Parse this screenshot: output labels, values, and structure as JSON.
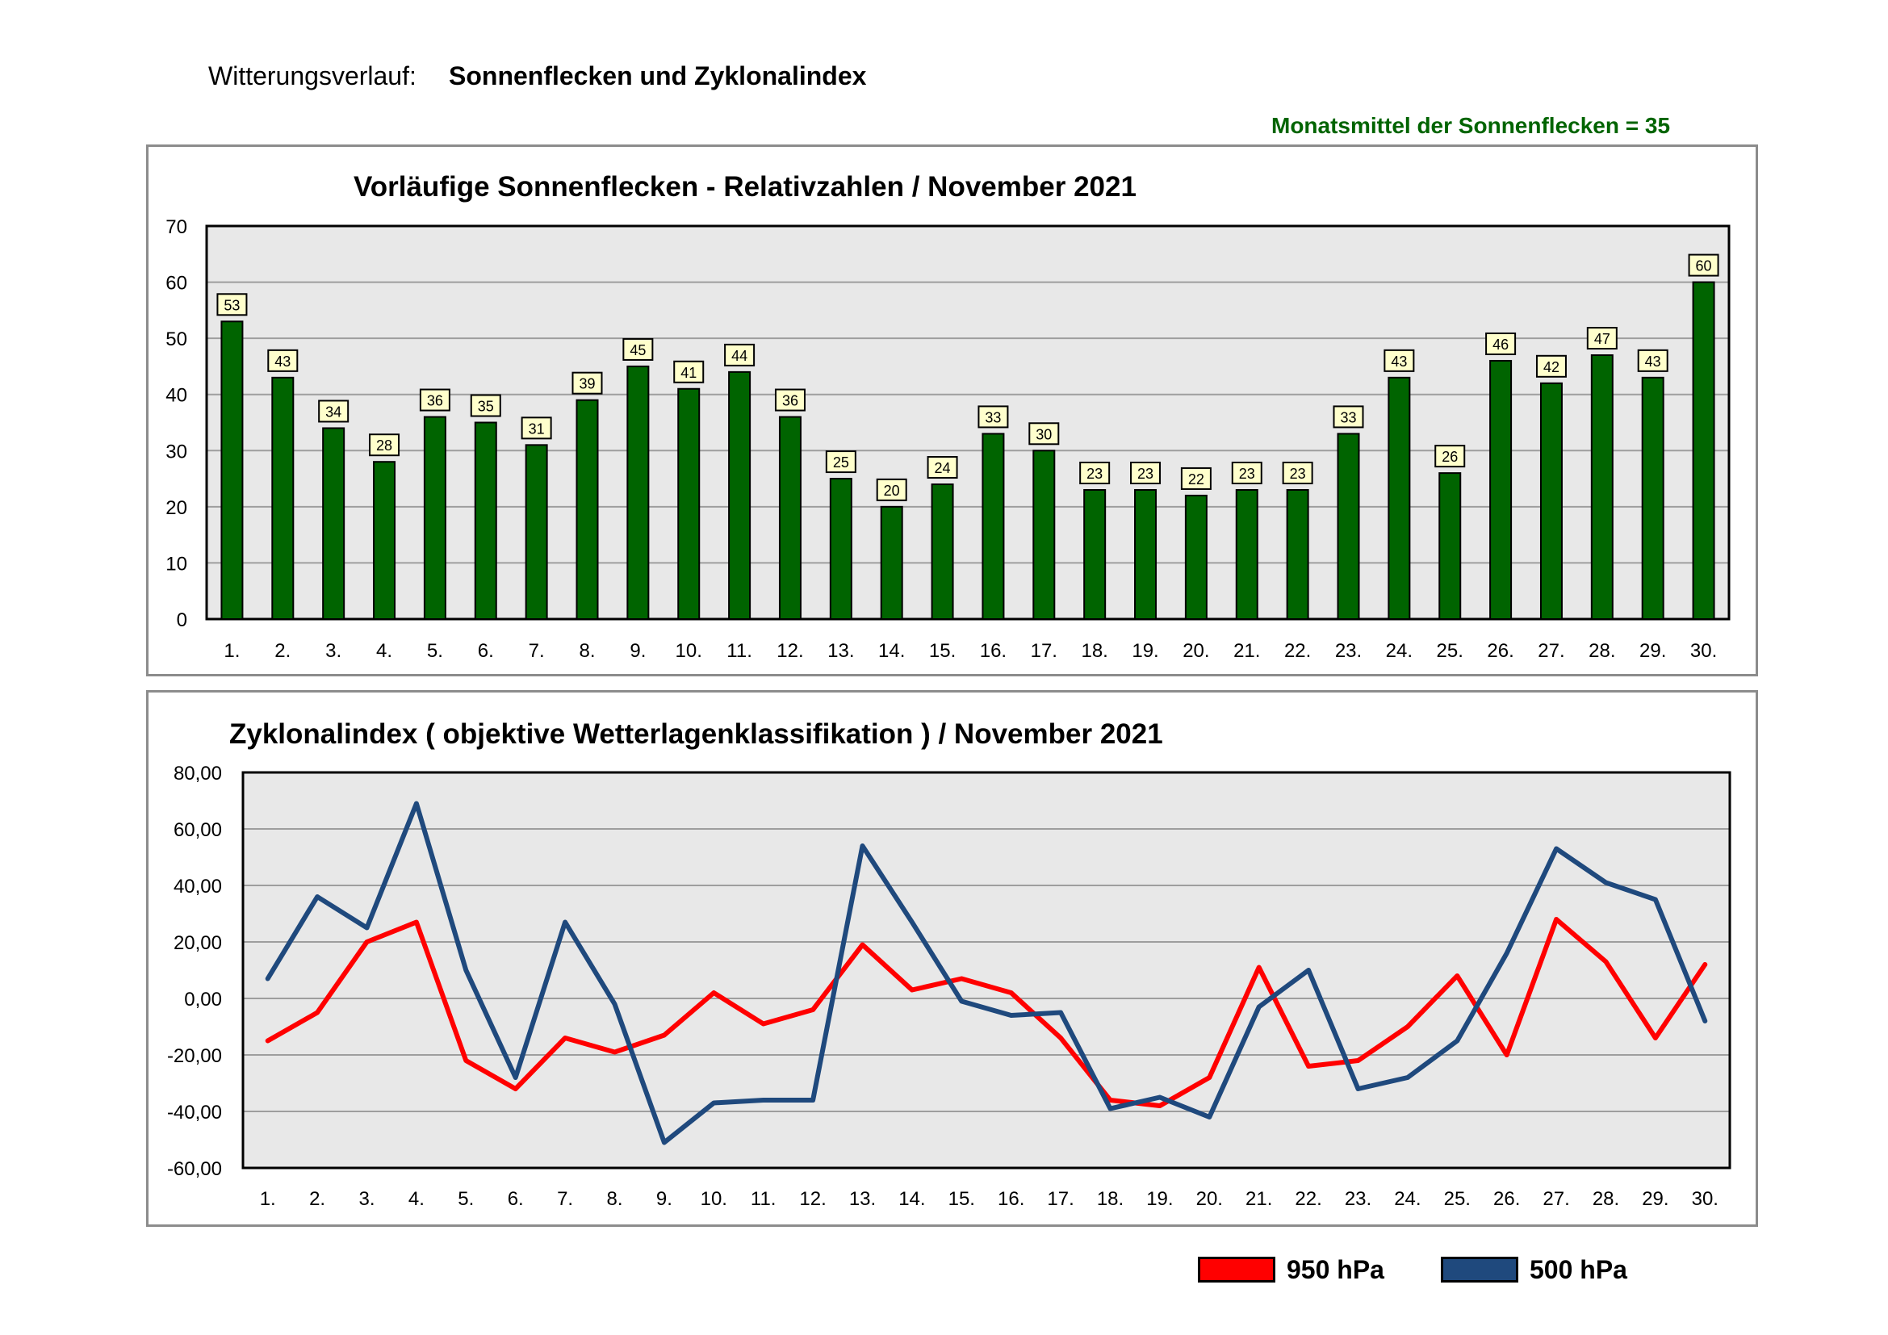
{
  "header": {
    "label": "Witterungsverlauf:",
    "title": "Sonnenflecken und Zyklonalindex",
    "monthly_mean": "Monatsmittel der Sonnenflecken = 35"
  },
  "colors": {
    "bar": "#006400",
    "plot_bg": "#e8e8e8",
    "grid": "#9e9e9e",
    "label_box": "#ffffcc",
    "series_950": "#ff0000",
    "series_500": "#1f497d"
  },
  "legend": {
    "item_950": "950 hPa",
    "item_500": "500 hPa"
  },
  "chart_data": [
    {
      "type": "bar",
      "title": "Vorläufige Sonnenflecken - Relativzahlen  /   November 2021",
      "categories": [
        "1.",
        "2.",
        "3.",
        "4.",
        "5.",
        "6.",
        "7.",
        "8.",
        "9.",
        "10.",
        "11.",
        "12.",
        "13.",
        "14.",
        "15.",
        "16.",
        "17.",
        "18.",
        "19.",
        "20.",
        "21.",
        "22.",
        "23.",
        "24.",
        "25.",
        "26.",
        "27.",
        "28.",
        "29.",
        "30."
      ],
      "values": [
        53,
        43,
        34,
        28,
        36,
        35,
        31,
        39,
        45,
        41,
        44,
        36,
        25,
        20,
        24,
        33,
        30,
        23,
        23,
        22,
        23,
        23,
        33,
        43,
        26,
        46,
        42,
        47,
        43,
        60
      ],
      "ylim": [
        0,
        70
      ],
      "yticks": [
        0,
        10,
        20,
        30,
        40,
        50,
        60,
        70
      ],
      "ytick_labels": [
        "0",
        "10",
        "20",
        "30",
        "40",
        "50",
        "60",
        "70"
      ],
      "grid": true,
      "data_labels": true
    },
    {
      "type": "line",
      "title": "Zyklonalindex  ( objektive Wetterlagenklassifikation  )  /  November 2021",
      "categories": [
        "1.",
        "2.",
        "3.",
        "4.",
        "5.",
        "6.",
        "7.",
        "8.",
        "9.",
        "10.",
        "11.",
        "12.",
        "13.",
        "14.",
        "15.",
        "16.",
        "17.",
        "18.",
        "19.",
        "20.",
        "21.",
        "22.",
        "23.",
        "24.",
        "25.",
        "26.",
        "27.",
        "28.",
        "29.",
        "30."
      ],
      "series": [
        {
          "name": "950 hPa",
          "values": [
            -15,
            -5,
            20,
            27,
            -22,
            -32,
            -14,
            -19,
            -13,
            2,
            -9,
            -4,
            19,
            3,
            7,
            2,
            -14,
            -36,
            -38,
            -28,
            11,
            -24,
            -22,
            -10,
            8,
            -20,
            28,
            13,
            -14,
            12
          ]
        },
        {
          "name": "500 hPa",
          "values": [
            7,
            36,
            25,
            69,
            10,
            -28,
            27,
            -2,
            -51,
            -37,
            -36,
            -36,
            54,
            27,
            -1,
            -6,
            -5,
            -39,
            -35,
            -42,
            -3,
            10,
            -32,
            -28,
            -15,
            16,
            53,
            41,
            35,
            -8
          ]
        }
      ],
      "ylim": [
        -60,
        80
      ],
      "yticks": [
        -60,
        -40,
        -20,
        0,
        20,
        40,
        60,
        80
      ],
      "ytick_labels": [
        "-60,00",
        "-40,00",
        "-20,00",
        "0,00",
        "20,00",
        "40,00",
        "60,00",
        "80,00"
      ],
      "grid": true,
      "legend_position": "bottom-right"
    }
  ]
}
